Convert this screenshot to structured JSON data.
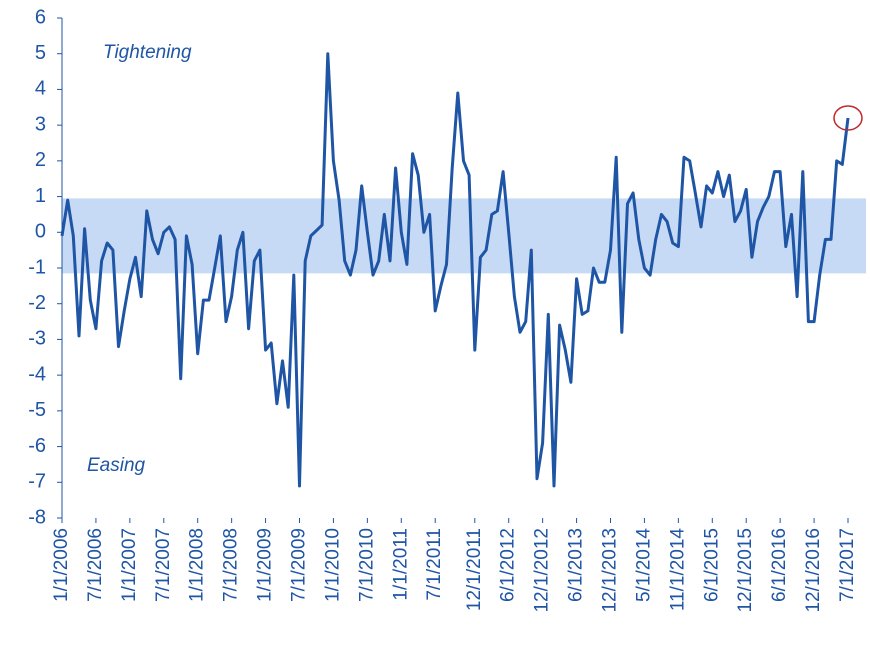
{
  "chart_data": {
    "type": "line",
    "annotations": [
      "Tightening",
      "Easing"
    ],
    "categories": [
      "1/1/2006",
      null,
      null,
      null,
      null,
      null,
      "7/1/2006",
      null,
      null,
      null,
      null,
      null,
      "1/1/2007",
      null,
      null,
      null,
      null,
      null,
      "7/1/2007",
      null,
      null,
      null,
      null,
      null,
      "1/1/2008",
      null,
      null,
      null,
      null,
      null,
      "7/1/2008",
      null,
      null,
      null,
      null,
      null,
      "1/1/2009",
      null,
      null,
      null,
      null,
      null,
      "7/1/2009",
      null,
      null,
      null,
      null,
      null,
      "1/1/2010",
      null,
      null,
      null,
      null,
      null,
      "7/1/2010",
      null,
      null,
      null,
      null,
      null,
      "1/1/2011",
      null,
      null,
      null,
      null,
      null,
      "7/1/2011",
      null,
      null,
      null,
      null,
      null,
      null,
      "12/1/2011",
      null,
      null,
      null,
      null,
      null,
      "6/1/2012",
      null,
      null,
      null,
      null,
      null,
      "12/1/2012",
      null,
      null,
      null,
      null,
      null,
      "6/1/2013",
      null,
      null,
      null,
      null,
      null,
      "12/1/2013",
      null,
      null,
      null,
      null,
      null,
      "5/1/2014",
      null,
      null,
      null,
      null,
      null,
      "11/1/2014",
      null,
      null,
      null,
      null,
      null,
      "6/1/2015",
      null,
      null,
      null,
      null,
      null,
      "12/1/2015",
      null,
      null,
      null,
      null,
      null,
      "6/1/2016",
      null,
      null,
      null,
      null,
      null,
      "12/1/2016",
      null,
      null,
      null,
      null,
      null,
      "7/1/2017"
    ],
    "values": [
      -0.1,
      0.9,
      -0.1,
      -2.9,
      0.1,
      -1.9,
      -2.7,
      -0.8,
      -0.3,
      -0.5,
      -3.2,
      -2.2,
      -1.3,
      -0.7,
      -1.8,
      0.6,
      -0.2,
      -0.6,
      0,
      0.15,
      -0.2,
      -4.1,
      -0.1,
      -0.9,
      -3.4,
      -1.9,
      -1.9,
      -1.0,
      -0.1,
      -2.5,
      -1.8,
      -0.5,
      0,
      -2.7,
      -0.8,
      -0.5,
      -3.3,
      -3.1,
      -4.8,
      -3.6,
      -4.9,
      -1.2,
      -7.1,
      -0.8,
      -0.1,
      0.05,
      0.2,
      5.0,
      2.0,
      0.9,
      -0.8,
      -1.2,
      -0.5,
      1.3,
      0,
      -1.2,
      -0.8,
      0.5,
      -0.8,
      1.8,
      0,
      -0.9,
      2.2,
      1.6,
      0,
      0.5,
      -2.2,
      -1.5,
      -0.9,
      1.8,
      3.9,
      2.0,
      1.6,
      -3.3,
      -0.7,
      -0.5,
      0.5,
      0.6,
      1.7,
      0,
      -1.8,
      -2.8,
      -2.5,
      -0.5,
      -6.9,
      -5.9,
      -2.3,
      -7.1,
      -2.6,
      -3.3,
      -4.2,
      -1.3,
      -2.3,
      -2.2,
      -1.0,
      -1.4,
      -1.4,
      -0.5,
      2.1,
      -2.8,
      0.8,
      1.1,
      -0.2,
      -1.0,
      -1.2,
      -0.2,
      0.5,
      0.3,
      -0.3,
      -0.4,
      2.1,
      2.0,
      1.1,
      0.15,
      1.3,
      1.1,
      1.7,
      1.0,
      1.6,
      0.3,
      0.6,
      1.2,
      -0.7,
      0.3,
      0.7,
      1.0,
      1.7,
      1.7,
      -0.4,
      0.5,
      -1.8,
      1.7,
      -2.5,
      -2.5,
      -1.2,
      -0.2,
      -0.2,
      2.0,
      1.9,
      3.2
    ],
    "color": "#1f55a5",
    "band": [
      -1.15,
      0.95
    ],
    "band_color": "#c6daf6",
    "ylim": [
      -8,
      6
    ],
    "yticks": [
      -8,
      -7,
      -6,
      -5,
      -4,
      -3,
      -2,
      -1,
      0,
      1,
      2,
      3,
      4,
      5,
      6
    ],
    "grid": false
  }
}
